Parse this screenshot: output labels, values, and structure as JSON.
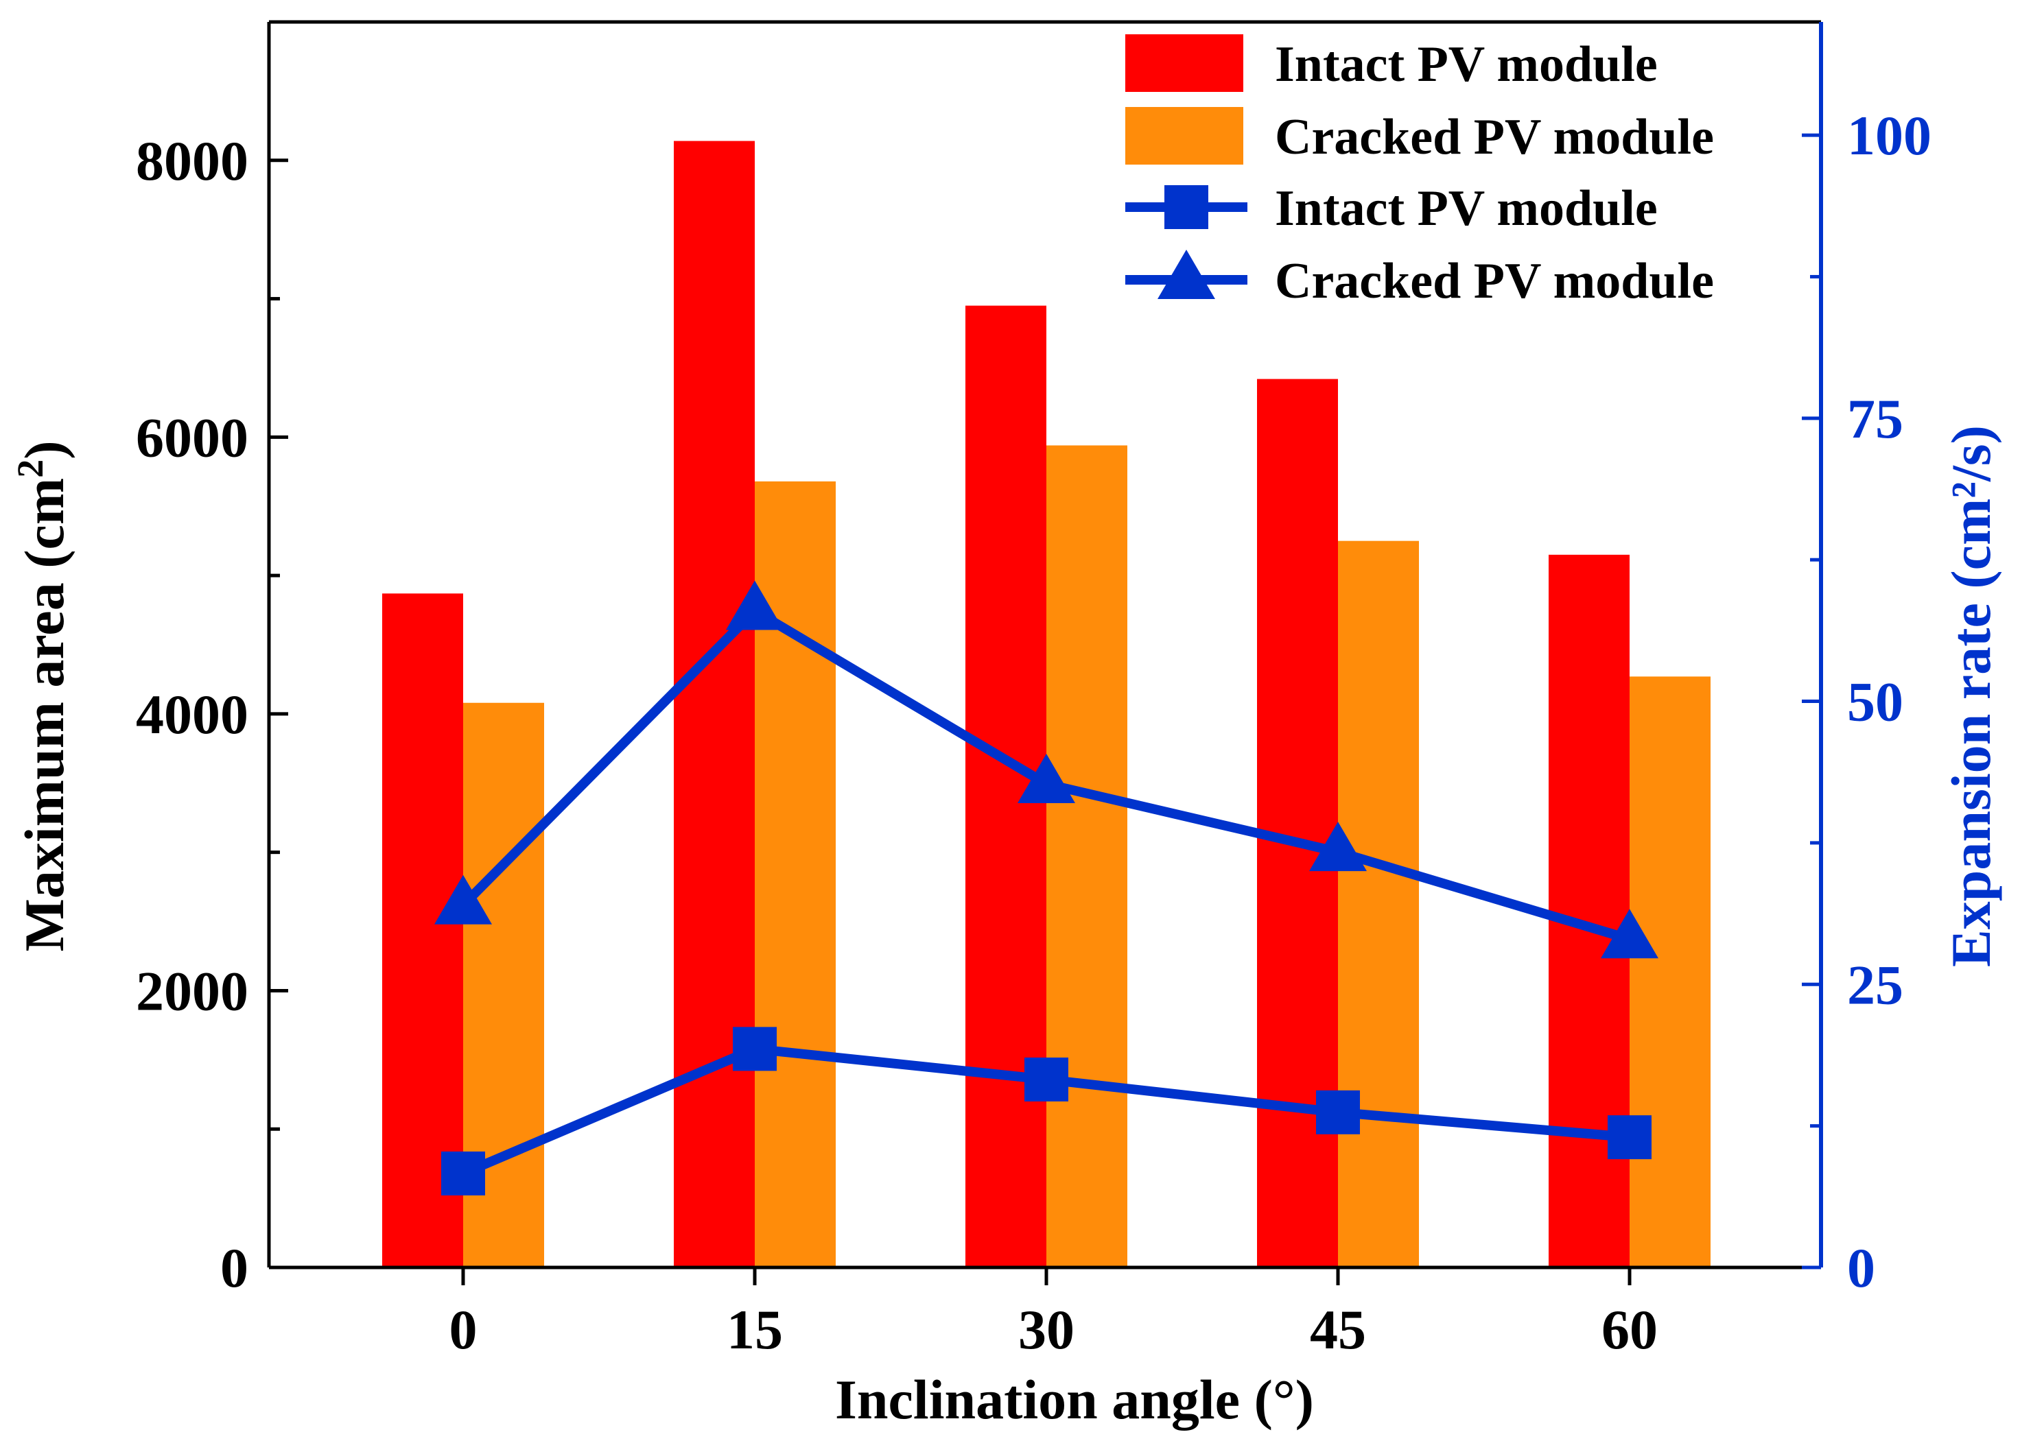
{
  "chart_data": {
    "type": "bar",
    "categories": [
      "0",
      "15",
      "30",
      "45",
      "60"
    ],
    "xlabel": "Inclination angle (°)",
    "ylabel": "Maximum area (cm²)",
    "ylabel_base": "Maximum area (cm",
    "ylabel_sup": "2",
    "ylabel_close": ")",
    "ylim": [
      0,
      9000
    ],
    "y_ticks": [
      0,
      2000,
      4000,
      6000,
      8000
    ],
    "y2label": "Expansion rate (cm²/s)",
    "y2lim": [
      0,
      110
    ],
    "y2_ticks": [
      0,
      25,
      50,
      75,
      100
    ],
    "grid": false,
    "legend_position": "top-right",
    "series": [
      {
        "name": "Intact PV module",
        "kind": "bar",
        "axis": "left",
        "color": "#ff0000",
        "values": [
          4870,
          8140,
          6950,
          6420,
          5150
        ]
      },
      {
        "name": "Cracked PV module",
        "kind": "bar",
        "axis": "left",
        "color": "#ff8c0a",
        "values": [
          4080,
          5680,
          5940,
          5250,
          4270
        ]
      },
      {
        "name": "Intact PV module",
        "kind": "line",
        "marker": "square",
        "axis": "right",
        "color": "#0033cc",
        "values": [
          8.3,
          19.3,
          16.6,
          13.7,
          11.5
        ]
      },
      {
        "name": "Cracked PV module",
        "kind": "line",
        "marker": "triangle",
        "axis": "right",
        "color": "#0033cc",
        "values": [
          32.0,
          58.0,
          42.7,
          36.7,
          29.0
        ]
      }
    ]
  }
}
